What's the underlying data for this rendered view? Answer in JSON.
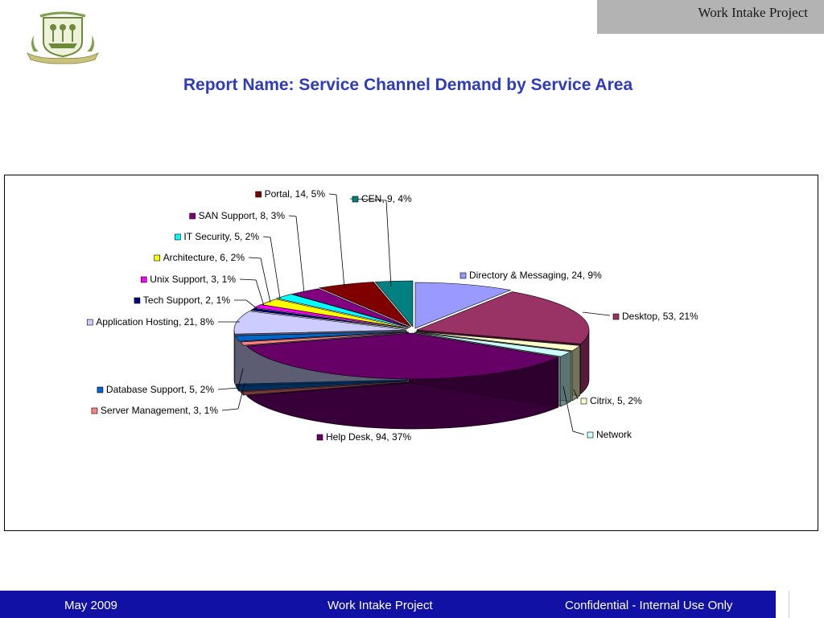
{
  "header": {
    "tab_title": "Work Intake Project",
    "logo_icon": "state-seal-logo"
  },
  "report": {
    "title": "Report Name:  Service Channel Demand by Service Area"
  },
  "footer": {
    "date": "May 2009",
    "center": "Work Intake Project",
    "right": "Confidential - Internal Use Only"
  },
  "chart_data": {
    "type": "pie",
    "title": "",
    "style": "3d-exploded",
    "slices": [
      {
        "name": "Directory & Messaging",
        "value": 24,
        "percent": 9,
        "label": "Directory & Messaging, 24, 9%",
        "color": "#9999ff"
      },
      {
        "name": "Desktop",
        "value": 53,
        "percent": 21,
        "label": "Desktop, 53, 21%",
        "color": "#993366"
      },
      {
        "name": "Citrix",
        "value": 5,
        "percent": 2,
        "label": "Citrix, 5, 2%",
        "color": "#ffffcc"
      },
      {
        "name": "Network",
        "value": 5,
        "percent": 2,
        "label": "Network",
        "color": "#ccffff"
      },
      {
        "name": "Help Desk",
        "value": 94,
        "percent": 37,
        "label": "Help Desk, 94, 37%",
        "color": "#660066"
      },
      {
        "name": "Server Management",
        "value": 3,
        "percent": 1,
        "label": "Server Management, 3, 1%",
        "color": "#ff8080"
      },
      {
        "name": "Database Support",
        "value": 5,
        "percent": 2,
        "label": "Database Support, 5, 2%",
        "color": "#0066cc"
      },
      {
        "name": "Application Hosting",
        "value": 21,
        "percent": 8,
        "label": "Application Hosting, 21, 8%",
        "color": "#ccccff"
      },
      {
        "name": "Tech Support",
        "value": 2,
        "percent": 1,
        "label": "Tech Support, 2, 1%",
        "color": "#000080"
      },
      {
        "name": "Unix Support",
        "value": 3,
        "percent": 1,
        "label": "Unix Support, 3, 1%",
        "color": "#ff00ff"
      },
      {
        "name": "Architecture",
        "value": 6,
        "percent": 2,
        "label": "Architecture, 6, 2%",
        "color": "#ffff00"
      },
      {
        "name": "IT Security",
        "value": 5,
        "percent": 2,
        "label": "IT Security, 5, 2%",
        "color": "#00ffff"
      },
      {
        "name": "SAN Support",
        "value": 8,
        "percent": 3,
        "label": "SAN Support, 8, 3%",
        "color": "#800080"
      },
      {
        "name": "Portal",
        "value": 14,
        "percent": 5,
        "label": "Portal, 14, 5%",
        "color": "#800000"
      },
      {
        "name": "CEN",
        "value": 9,
        "percent": 4,
        "label": "CEN, 9, 4%",
        "color": "#008080"
      }
    ]
  }
}
